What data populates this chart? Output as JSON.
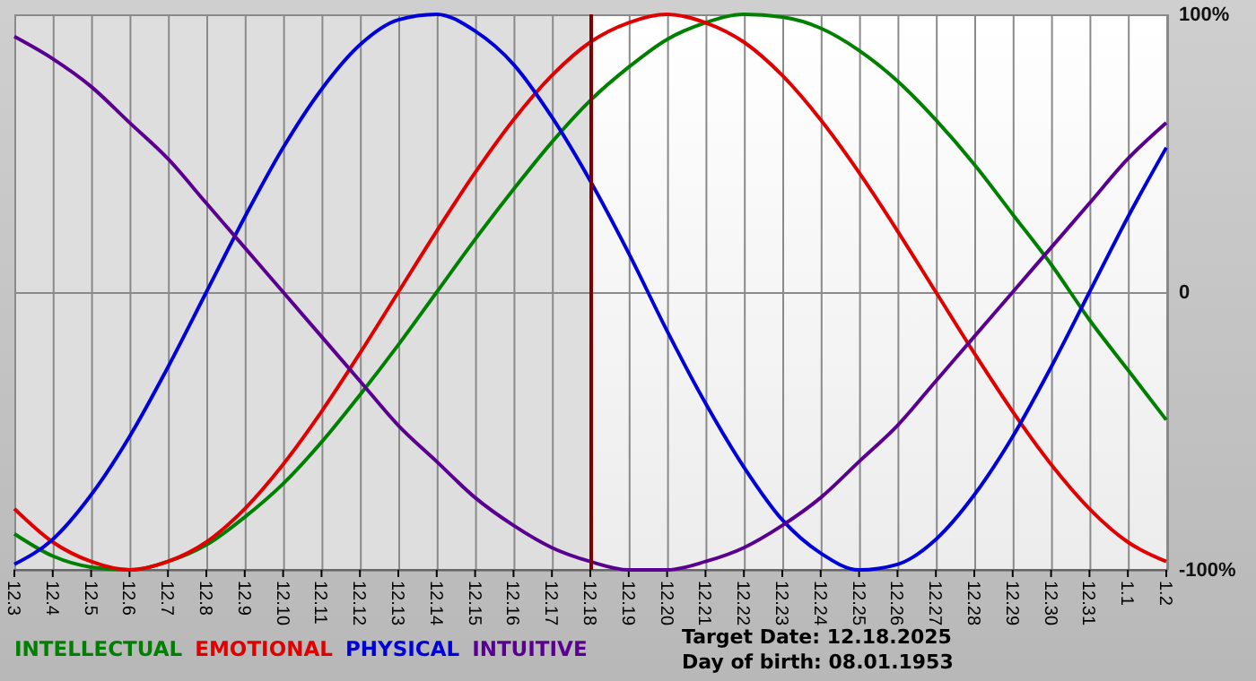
{
  "chart_data": {
    "type": "line",
    "categories": [
      "12.3",
      "12.4",
      "12.5",
      "12.6",
      "12.7",
      "12.8",
      "12.9",
      "12.10",
      "12.11",
      "12.12",
      "12.13",
      "12.14",
      "12.15",
      "12.16",
      "12.17",
      "12.18",
      "12.19",
      "12.20",
      "12.21",
      "12.22",
      "12.23",
      "12.24",
      "12.25",
      "12.26",
      "12.27",
      "12.28",
      "12.29",
      "12.30",
      "12.31",
      "1.1",
      "1.2"
    ],
    "series": [
      {
        "name": "INTELLECTUAL",
        "color": "#008000",
        "values": [
          -87,
          -95,
          -99,
          -100,
          -97,
          -91,
          -81,
          -69,
          -54,
          -37,
          -19,
          0,
          19,
          37,
          54,
          69,
          81,
          91,
          97,
          100,
          99,
          95,
          87,
          76,
          62,
          46,
          28,
          10,
          -10,
          -28,
          -46
        ]
      },
      {
        "name": "EMOTIONAL",
        "color": "#e00000",
        "values": [
          -78,
          -90,
          -97,
          -100,
          -97,
          -90,
          -78,
          -62,
          -43,
          -22,
          0,
          22,
          43,
          62,
          78,
          90,
          97,
          100,
          97,
          90,
          78,
          62,
          43,
          22,
          0,
          -22,
          -43,
          -62,
          -78,
          -90,
          -97
        ]
      },
      {
        "name": "PHYSICAL",
        "color": "#0000d8",
        "values": [
          -98,
          -89,
          -73,
          -52,
          -27,
          0,
          27,
          52,
          73,
          89,
          98,
          100,
          94,
          82,
          63,
          40,
          14,
          -14,
          -40,
          -63,
          -82,
          -94,
          -100,
          -98,
          -89,
          -73,
          -52,
          -27,
          0,
          27,
          52
        ]
      },
      {
        "name": "INTUITIVE",
        "color": "#5a0090",
        "values": [
          92,
          84,
          74,
          61,
          48,
          32,
          16,
          0,
          -16,
          -32,
          -48,
          -61,
          -74,
          -84,
          -92,
          -97,
          -100,
          -100,
          -97,
          -92,
          -84,
          -74,
          -61,
          -48,
          -32,
          -16,
          0,
          16,
          32,
          48,
          61
        ]
      }
    ],
    "ylim": [
      -100,
      100
    ],
    "yticks": [
      {
        "value": 100,
        "label": "100%"
      },
      0,
      {
        "value": -100,
        "label": "-100%"
      }
    ],
    "grid": true,
    "legend": "bottom",
    "line_style": "solid",
    "ref_lines": [
      {
        "axis": "x",
        "value": "12.18",
        "color": "#800000"
      }
    ],
    "bands": [
      {
        "axis": "x",
        "from": "12.3",
        "to": "12.18",
        "color": "#dedede"
      }
    ],
    "annotations": [
      "Target Date: 12.18.2025",
      "Day of birth: 08.01.1953"
    ]
  }
}
